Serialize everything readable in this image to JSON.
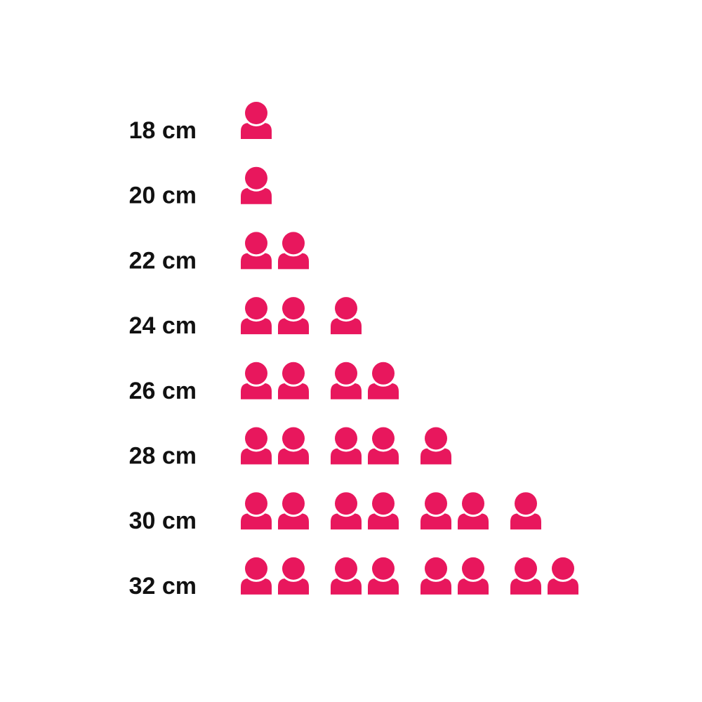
{
  "chart_data": {
    "type": "pictograph",
    "icon": "person-icon",
    "color": "#E8175D",
    "categories": [
      "18 cm",
      "20 cm",
      "22 cm",
      "24 cm",
      "26 cm",
      "28 cm",
      "30 cm",
      "32 cm"
    ],
    "values": [
      1,
      1,
      2,
      3,
      4,
      5,
      7,
      8
    ],
    "title": "",
    "xlabel": "",
    "ylabel": ""
  }
}
